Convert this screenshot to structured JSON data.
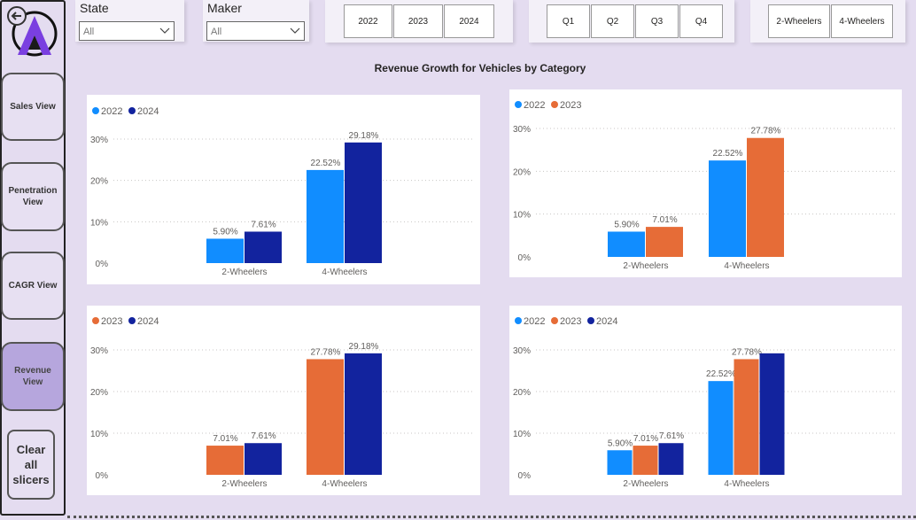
{
  "nav": {
    "sales": "Sales View",
    "penetration": "Penetration View",
    "cagr": "CAGR View",
    "revenue": "Revenue View",
    "clear": "Clear all slicers"
  },
  "slicers": {
    "state": {
      "title": "State",
      "value": "All"
    },
    "maker": {
      "title": "Maker",
      "value": "All"
    },
    "years": [
      "2022",
      "2023",
      "2024"
    ],
    "quarters": [
      "Q1",
      "Q2",
      "Q3",
      "Q4"
    ],
    "categories": [
      "2-Wheelers",
      "4-Wheelers"
    ]
  },
  "page_title": "Revenue Growth for Vehicles by Category",
  "colors": {
    "2022": "#118dff",
    "2023": "#e66c37",
    "2024": "#12239e"
  },
  "chart_data": [
    {
      "type": "bar",
      "categories": [
        "2-Wheelers",
        "4-Wheelers"
      ],
      "series": [
        {
          "name": "2022",
          "values": [
            5.9,
            22.52
          ]
        },
        {
          "name": "2024",
          "values": [
            7.61,
            29.18
          ]
        }
      ],
      "yticks": [
        "0%",
        "10%",
        "20%",
        "30%"
      ],
      "ylim": [
        0,
        30
      ],
      "legend": "top-left"
    },
    {
      "type": "bar",
      "categories": [
        "2-Wheelers",
        "4-Wheelers"
      ],
      "series": [
        {
          "name": "2022",
          "values": [
            5.9,
            22.52
          ]
        },
        {
          "name": "2023",
          "values": [
            7.01,
            27.78
          ]
        }
      ],
      "yticks": [
        "0%",
        "10%",
        "20%",
        "30%"
      ],
      "ylim": [
        0,
        30
      ],
      "legend": "top-left"
    },
    {
      "type": "bar",
      "categories": [
        "2-Wheelers",
        "4-Wheelers"
      ],
      "series": [
        {
          "name": "2023",
          "values": [
            7.01,
            27.78
          ]
        },
        {
          "name": "2024",
          "values": [
            7.61,
            29.18
          ]
        }
      ],
      "yticks": [
        "0%",
        "10%",
        "20%",
        "30%"
      ],
      "ylim": [
        0,
        30
      ],
      "legend": "top-left"
    },
    {
      "type": "bar",
      "categories": [
        "2-Wheelers",
        "4-Wheelers"
      ],
      "series": [
        {
          "name": "2022",
          "values": [
            5.9,
            22.52
          ]
        },
        {
          "name": "2023",
          "values": [
            7.01,
            27.78
          ]
        },
        {
          "name": "2024",
          "values": [
            7.61,
            null
          ]
        }
      ],
      "bar_heights_unlabeled": {
        "2024": [
          7.61,
          29.18
        ]
      },
      "yticks": [
        "0%",
        "10%",
        "20%",
        "30%"
      ],
      "ylim": [
        0,
        30
      ],
      "legend": "top-left"
    }
  ]
}
